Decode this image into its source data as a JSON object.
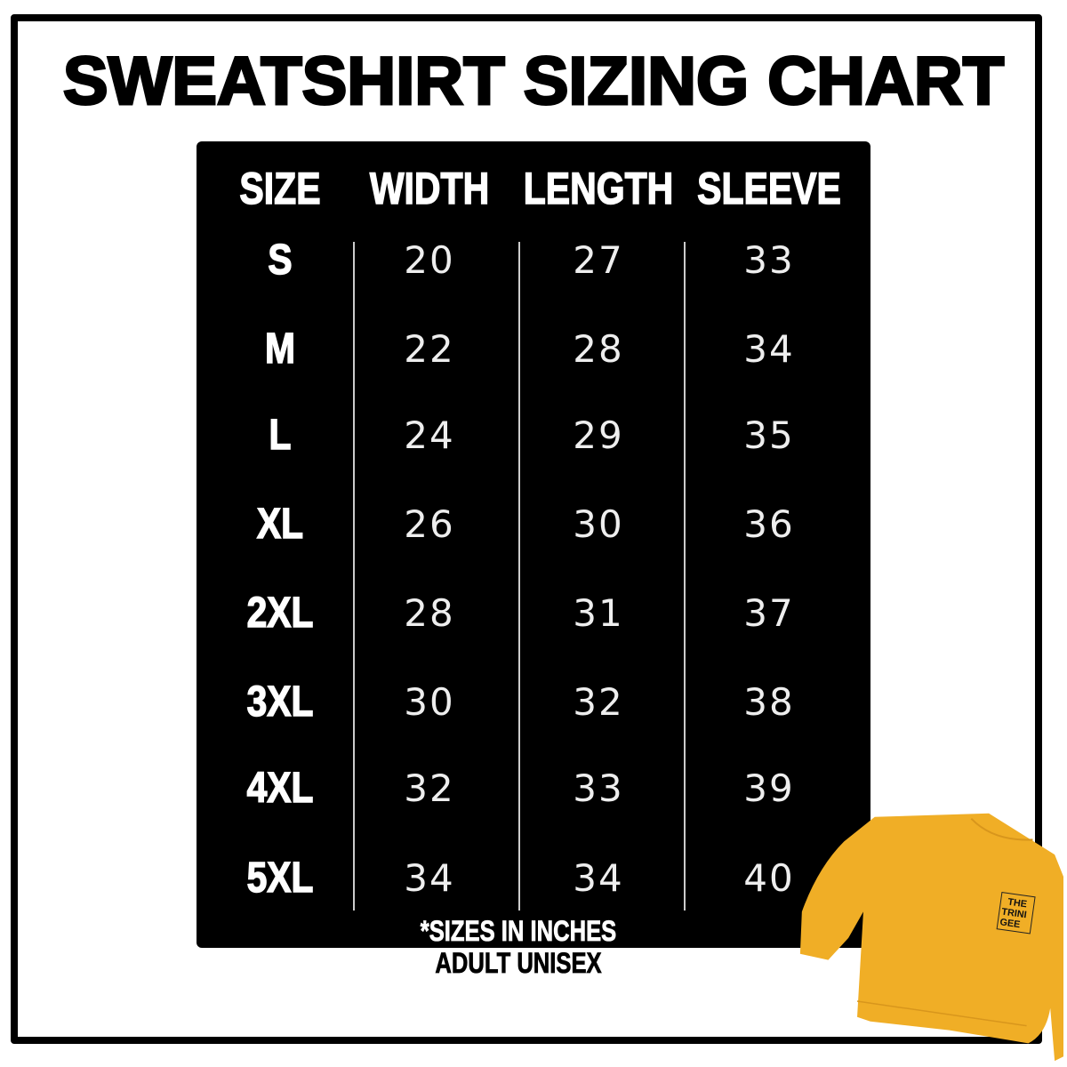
{
  "title": "SWEATSHIRT SIZING CHART",
  "headers": [
    "SIZE",
    "WIDTH",
    "LENGTH",
    "SLEEVE"
  ],
  "rows": [
    {
      "size": "S",
      "width": "20",
      "length": "27",
      "sleeve": "33"
    },
    {
      "size": "M",
      "width": "22",
      "length": "28",
      "sleeve": "34"
    },
    {
      "size": "L",
      "width": "24",
      "length": "29",
      "sleeve": "35"
    },
    {
      "size": "XL",
      "width": "26",
      "length": "30",
      "sleeve": "36"
    },
    {
      "size": "2XL",
      "width": "28",
      "length": "31",
      "sleeve": "37"
    },
    {
      "size": "3XL",
      "width": "30",
      "length": "32",
      "sleeve": "38"
    },
    {
      "size": "4XL",
      "width": "32",
      "length": "33",
      "sleeve": "39"
    },
    {
      "size": "5XL",
      "width": "34",
      "length": "34",
      "sleeve": "40"
    }
  ],
  "notes": {
    "units": "*SIZES IN INCHES",
    "fit": "ADULT UNISEX"
  },
  "product_image": {
    "logo_text": "THE TRINI GEE",
    "color": "#F0AE26"
  },
  "colors": {
    "panel": "#000000",
    "frame": "#000000",
    "background": "#FFFFFF"
  }
}
